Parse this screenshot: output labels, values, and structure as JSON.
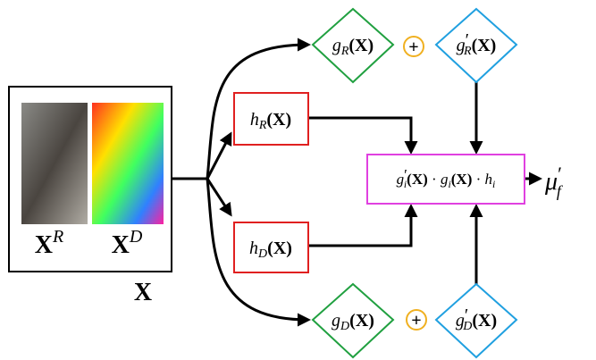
{
  "input": {
    "rgb_label": [
      "X",
      "R"
    ],
    "depth_label": [
      "X",
      "D"
    ],
    "label": "X"
  },
  "nodes": {
    "hR": [
      "h",
      "R",
      "(X)"
    ],
    "hD": [
      "h",
      "D",
      "(X)"
    ],
    "gR": [
      "g",
      "R",
      "(X)"
    ],
    "gpR": [
      "g",
      "′",
      "R",
      "(X)"
    ],
    "gD": [
      "g",
      "D",
      "(X)"
    ],
    "gpD": [
      "g",
      "′",
      "D",
      "(X)"
    ],
    "plus_top": "+",
    "plus_bottom": "+",
    "fusion": [
      "g",
      "′",
      "i",
      "(X)",
      " · ",
      "g",
      "i",
      "(X)",
      " · ",
      "h",
      "i"
    ],
    "output": [
      "μ",
      "′",
      "f"
    ]
  }
}
